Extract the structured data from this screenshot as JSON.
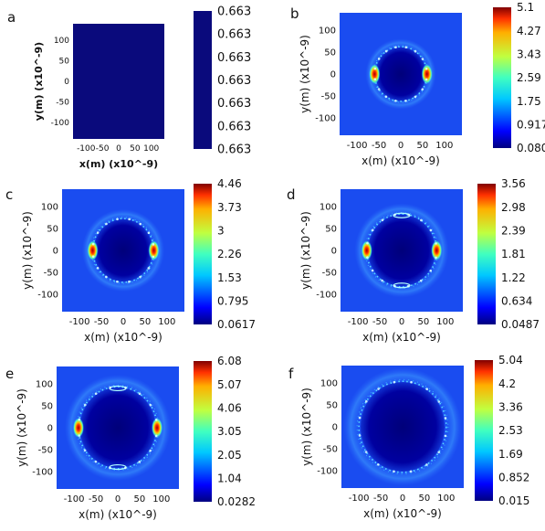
{
  "chart_data": [
    {
      "panel": "a",
      "type": "heatmap",
      "xlabel": "x(m) (x10^-9)",
      "ylabel": "y(m) (x10^-9)",
      "xticks": [
        "-100",
        "-50",
        "0",
        "50",
        "100"
      ],
      "yticks": [
        "100",
        "50",
        "0",
        "-50",
        "-100"
      ],
      "xlim": [
        -140,
        140
      ],
      "ylim": [
        -140,
        140
      ],
      "colorbar": {
        "ticks": [
          "0.663",
          "0.663",
          "0.663",
          "0.663",
          "0.663",
          "0.663",
          "0.663"
        ],
        "colormap": "uniform-navy"
      },
      "field": {
        "uniform": true
      }
    },
    {
      "panel": "b",
      "type": "heatmap",
      "xlabel": "x(m) (x10^-9)",
      "ylabel": "y(m) (x10^-9)",
      "xticks": [
        "-100",
        "-50",
        "0",
        "50",
        "100"
      ],
      "yticks": [
        "100",
        "50",
        "0",
        "-50",
        "-100"
      ],
      "xlim": [
        -140,
        140
      ],
      "ylim": [
        -140,
        140
      ],
      "colorbar": {
        "ticks": [
          "5.1",
          "4.27",
          "3.43",
          "2.59",
          "1.75",
          "0.917",
          "0.0804"
        ],
        "colormap": "jet"
      },
      "field": {
        "radius": 60,
        "hotspot_x": [
          -60,
          60
        ],
        "top_bottom_hotspots": false
      }
    },
    {
      "panel": "c",
      "type": "heatmap",
      "xlabel": "x(m) (x10^-9)",
      "ylabel": "y(m) (x10^-9)",
      "xticks": [
        "-100",
        "-50",
        "0",
        "50",
        "100"
      ],
      "yticks": [
        "100",
        "50",
        "0",
        "-50",
        "-100"
      ],
      "xlim": [
        -140,
        140
      ],
      "ylim": [
        -140,
        140
      ],
      "colorbar": {
        "ticks": [
          "4.46",
          "3.73",
          "3",
          "2.26",
          "1.53",
          "0.795",
          "0.0617"
        ],
        "colormap": "jet"
      },
      "field": {
        "radius": 70,
        "hotspot_x": [
          -70,
          70
        ],
        "top_bottom_hotspots": false
      }
    },
    {
      "panel": "d",
      "type": "heatmap",
      "xlabel": "x(m) (x10^-9)",
      "ylabel": "y(m) (x10^-9)",
      "xticks": [
        "-100",
        "-50",
        "0",
        "50",
        "100"
      ],
      "yticks": [
        "100",
        "50",
        "0",
        "-50",
        "-100"
      ],
      "xlim": [
        -140,
        140
      ],
      "ylim": [
        -140,
        140
      ],
      "colorbar": {
        "ticks": [
          "3.56",
          "2.98",
          "2.39",
          "1.81",
          "1.22",
          "0.634",
          "0.0487"
        ],
        "colormap": "jet"
      },
      "field": {
        "radius": 80,
        "hotspot_x": [
          -80,
          80
        ],
        "top_bottom_hotspots": true
      }
    },
    {
      "panel": "e",
      "type": "heatmap",
      "xlabel": "x(m) (x10^-9)",
      "ylabel": "y(m) (x10^-9)",
      "xticks": [
        "-100",
        "-50",
        "0",
        "50",
        "100"
      ],
      "yticks": [
        "100",
        "50",
        "0",
        "-50",
        "-100"
      ],
      "xlim": [
        -140,
        140
      ],
      "ylim": [
        -140,
        140
      ],
      "colorbar": {
        "ticks": [
          "6.08",
          "5.07",
          "4.06",
          "3.05",
          "2.05",
          "1.04",
          "0.0282"
        ],
        "colormap": "jet"
      },
      "field": {
        "radius": 90,
        "hotspot_x": [
          -90,
          90
        ],
        "top_bottom_hotspots": true
      }
    },
    {
      "panel": "f",
      "type": "heatmap",
      "xlabel": "x(m) (x10^-9)",
      "ylabel": "y(m) (x10^-9)",
      "xticks": [
        "-100",
        "-50",
        "0",
        "50",
        "100"
      ],
      "yticks": [
        "100",
        "50",
        "0",
        "-50",
        "-100"
      ],
      "xlim": [
        -140,
        140
      ],
      "ylim": [
        -140,
        140
      ],
      "colorbar": {
        "ticks": [
          "5.04",
          "4.2",
          "3.36",
          "2.53",
          "1.69",
          "0.852",
          "0.015"
        ],
        "colormap": "jet"
      },
      "field": {
        "radius": 100,
        "hotspot_x": [],
        "top_bottom_hotspots": false
      }
    }
  ]
}
